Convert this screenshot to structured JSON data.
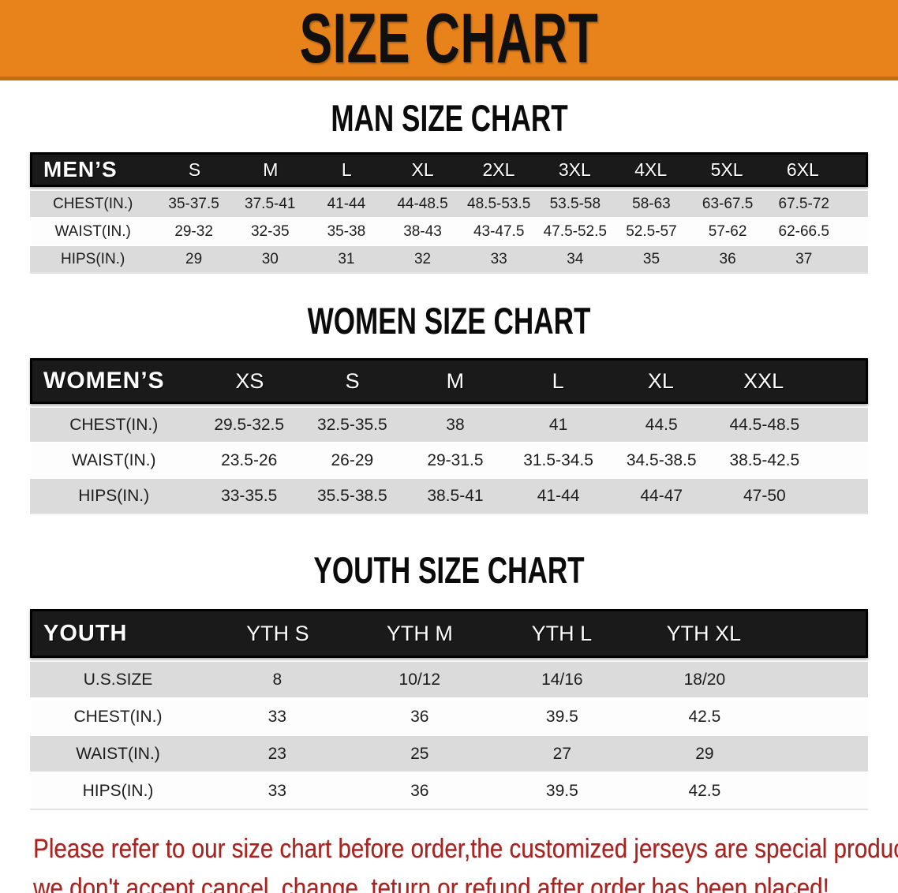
{
  "banner": {
    "title": "SIZE CHART",
    "bg_color": "#e8831b",
    "border_color": "#c76a0e",
    "text_color": "#101010"
  },
  "tables": [
    {
      "heading": "MAN SIZE CHART",
      "label": "MEN’S",
      "columns": [
        "S",
        "M",
        "L",
        "XL",
        "2XL",
        "3XL",
        "4XL",
        "5XL",
        "6XL"
      ],
      "rows": [
        {
          "label": "CHEST(IN.)",
          "values": [
            "35-37.5",
            "37.5-41",
            "41-44",
            "44-48.5",
            "48.5-53.5",
            "53.5-58",
            "58-63",
            "63-67.5",
            "67.5-72"
          ]
        },
        {
          "label": "WAIST(IN.)",
          "values": [
            "29-32",
            "32-35",
            "35-38",
            "38-43",
            "43-47.5",
            "47.5-52.5",
            "52.5-57",
            "57-62",
            "62-66.5"
          ]
        },
        {
          "label": "HIPS(IN.)",
          "values": [
            "29",
            "30",
            "31",
            "32",
            "33",
            "34",
            "35",
            "36",
            "37"
          ]
        }
      ]
    },
    {
      "heading": "WOMEN SIZE CHART",
      "label": "WOMEN’S",
      "columns": [
        "XS",
        "S",
        "M",
        "L",
        "XL",
        "XXL"
      ],
      "rows": [
        {
          "label": "CHEST(IN.)",
          "values": [
            "29.5-32.5",
            "32.5-35.5",
            "38",
            "41",
            "44.5",
            "44.5-48.5"
          ]
        },
        {
          "label": "WAIST(IN.)",
          "values": [
            "23.5-26",
            "26-29",
            "29-31.5",
            "31.5-34.5",
            "34.5-38.5",
            "38.5-42.5"
          ]
        },
        {
          "label": "HIPS(IN.)",
          "values": [
            "33-35.5",
            "35.5-38.5",
            "38.5-41",
            "41-44",
            "44-47",
            "47-50"
          ]
        }
      ]
    },
    {
      "heading": "YOUTH SIZE CHART",
      "label": "YOUTH",
      "columns": [
        "YTH S",
        "YTH M",
        "YTH L",
        "YTH XL"
      ],
      "rows": [
        {
          "label": "U.S.SIZE",
          "values": [
            "8",
            "10/12",
            "14/16",
            "18/20"
          ]
        },
        {
          "label": "CHEST(IN.)",
          "values": [
            "33",
            "36",
            "39.5",
            "42.5"
          ]
        },
        {
          "label": "WAIST(IN.)",
          "values": [
            "23",
            "25",
            "27",
            "29"
          ]
        },
        {
          "label": "HIPS(IN.)",
          "values": [
            "33",
            "36",
            "39.5",
            "42.5"
          ]
        }
      ]
    }
  ],
  "note": {
    "line1": "Please refer to our size chart before order,the customized jerseys are special products,",
    "line2": "we don't accept cancel, change, teturn or refund after order has been placed!",
    "color": "#a82420"
  }
}
